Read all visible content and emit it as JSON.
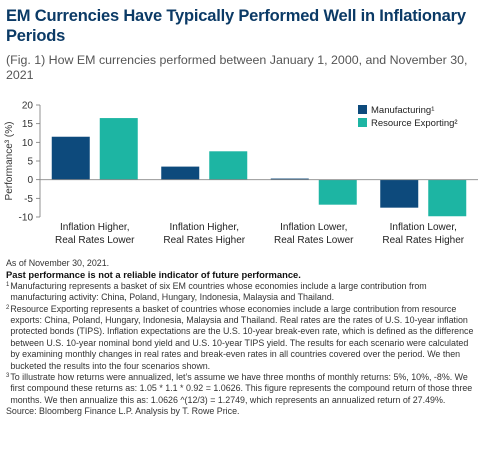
{
  "title": "EM Currencies Have Typically Performed Well in Inflationary Periods",
  "subtitle": "(Fig. 1) How EM currencies performed between January 1, 2000, and November 30, 2021",
  "chart_data": {
    "type": "bar",
    "ylabel": "Performance³ (%)",
    "ylim": [
      -10,
      20
    ],
    "yticks": [
      20,
      15,
      10,
      5,
      0,
      -5,
      -10
    ],
    "categories": [
      [
        "Inflation Higher,",
        "Real Rates Lower"
      ],
      [
        "Inflation Higher,",
        "Real Rates Higher"
      ],
      [
        "Inflation Lower,",
        "Real Rates Lower"
      ],
      [
        "Inflation Lower,",
        "Real Rates Higher"
      ]
    ],
    "series": [
      {
        "name": "Manufacturing¹",
        "color": "#0d4a7c",
        "values": [
          11.5,
          3.5,
          0.3,
          -7.5
        ]
      },
      {
        "name": "Resource Exporting²",
        "color": "#1db5a3",
        "values": [
          16.5,
          7.6,
          -6.7,
          -9.8
        ]
      }
    ],
    "legend_position": "top-right",
    "grid": false
  },
  "notes": {
    "as_of": "As of November 30, 2021.",
    "disclaimer": "Past performance is not a reliable indicator of future performance.",
    "fn1_mark": "1",
    "fn1": "Manufacturing represents a basket of six EM countries whose economies include a large contribution from manufacturing activity: China, Poland, Hungary, Indonesia, Malaysia and Thailand.",
    "fn2_mark": "2",
    "fn2": "Resource Exporting represents a basket of countries whose economies include a large contribution from resource exports: China, Poland, Hungary, Indonesia, Malaysia and Thailand. Real rates are the rates of U.S. 10-year inflation protected bonds (TIPS). Inflation expectations are the U.S. 10-year break-even rate, which is defined as the difference between U.S. 10-year nominal bond yield and U.S. 10-year TIPS yield. The results for each scenario were calculated by examining monthly changes in real rates and break-even rates in all countries covered over the period. We then bucketed the results into the four scenarios shown.",
    "fn3_mark": "3",
    "fn3": "To illustrate how returns were annualized, let’s assume we have three months of monthly returns: 5%, 10%, -8%. We first compound these returns as: 1.05 * 1.1 * 0.92 = 1.0626. This figure represents the compound return of those three months. We then annualize this as: 1.0626 ^(12/3) = 1.2749, which represents an annualized return of 27.49%.",
    "source": "Source: Bloomberg Finance L.P. Analysis by T. Rowe Price."
  }
}
